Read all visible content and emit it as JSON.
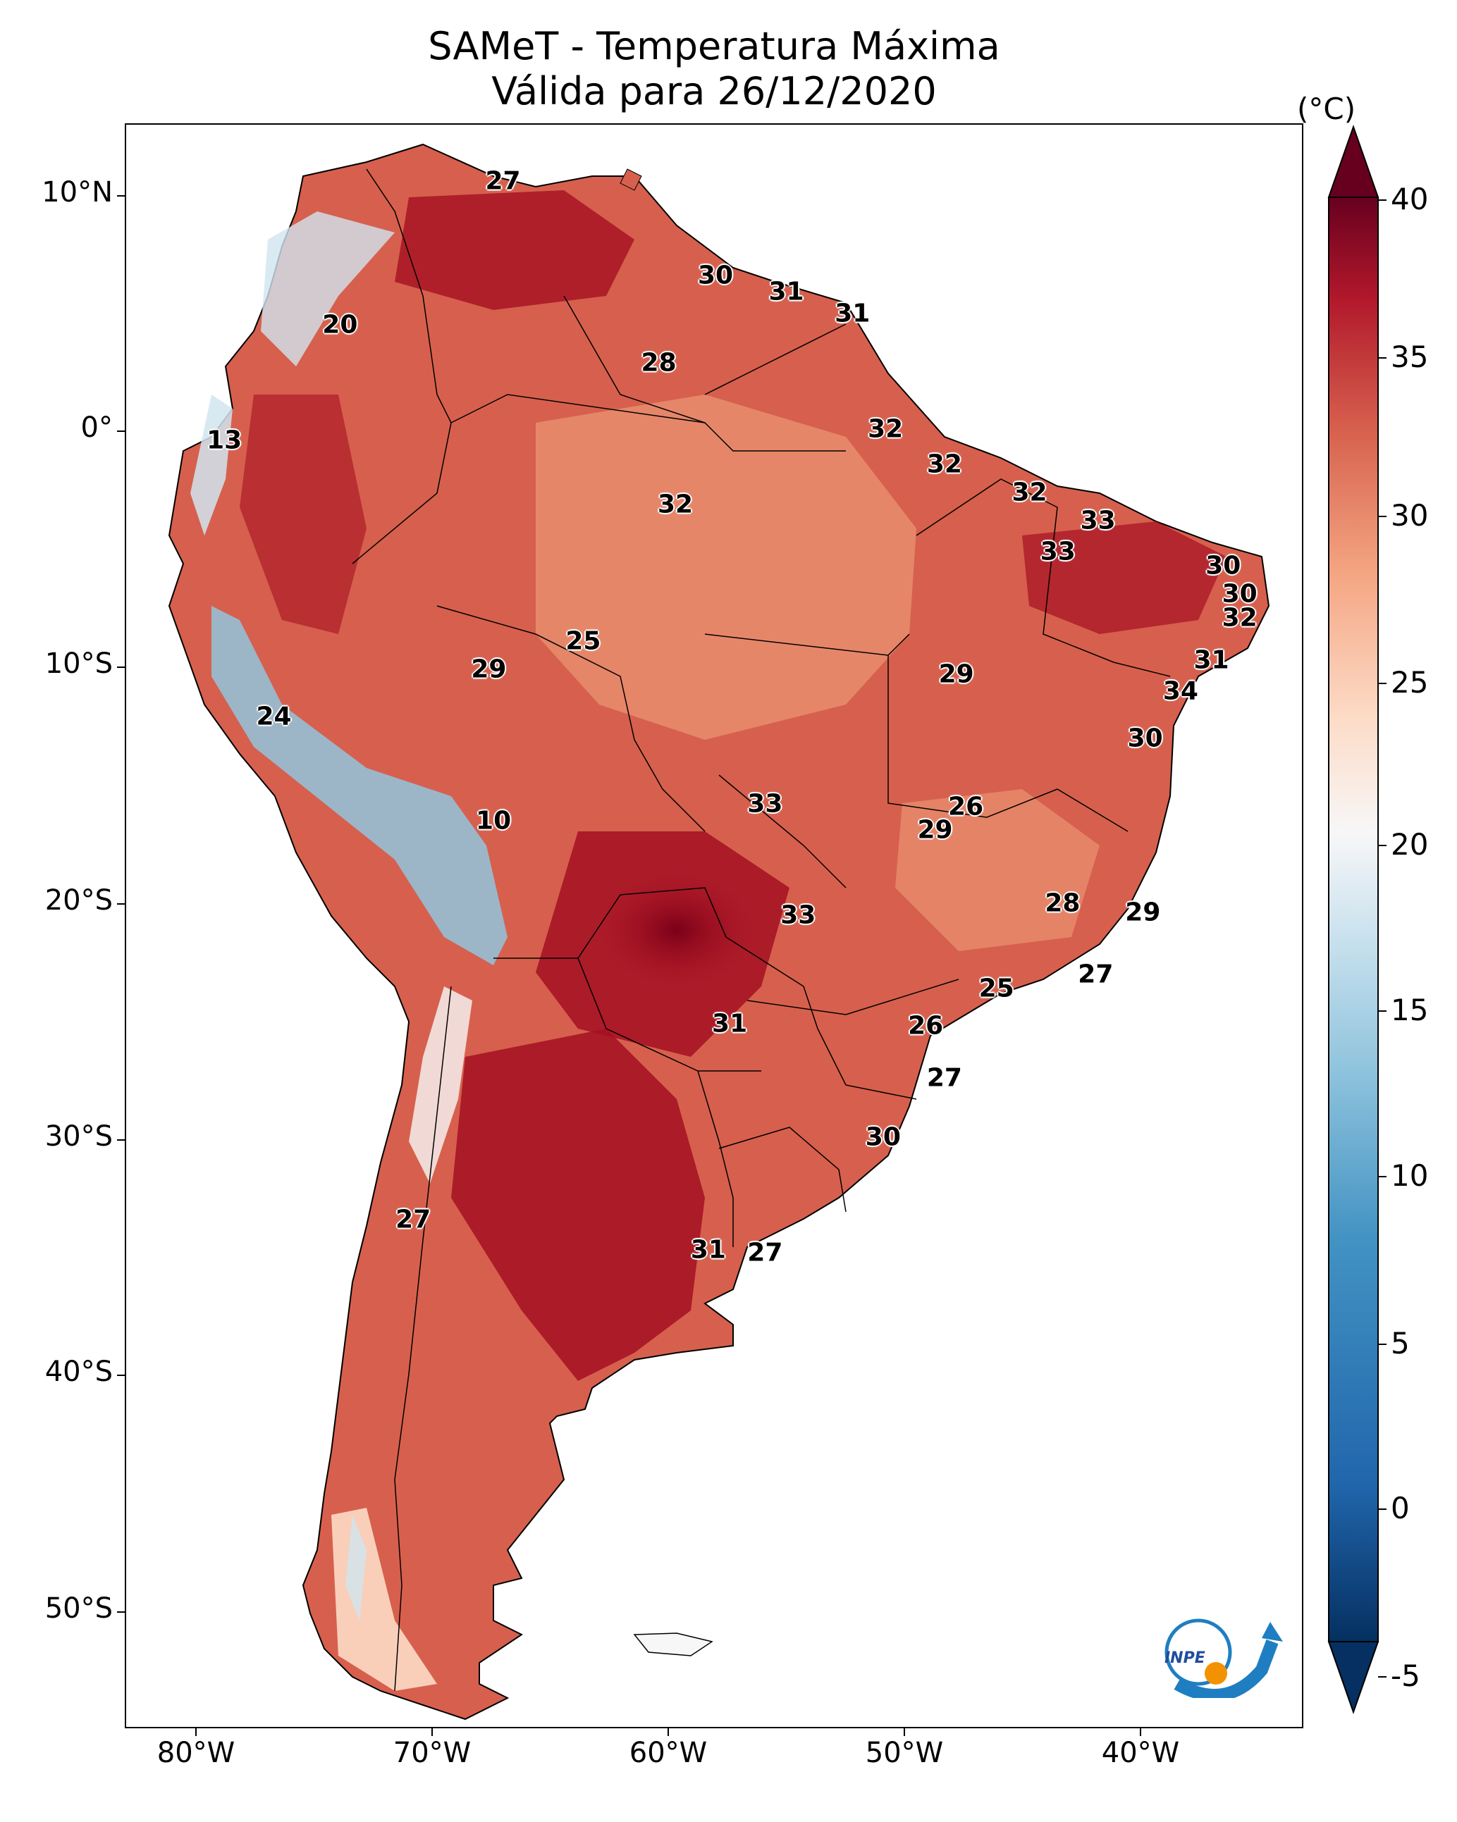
{
  "title": "SAMeT - Temperatura Máxima",
  "subtitle": "Válida para 26/12/2020",
  "colorbar": {
    "unit": "(°C)",
    "ticks": [
      "40",
      "35",
      "30",
      "25",
      "20",
      "15",
      "10",
      "5",
      "0",
      "-5"
    ],
    "range": [
      -5,
      40
    ]
  },
  "axes": {
    "lat_ticks": [
      "10°N",
      "0°",
      "10°S",
      "20°S",
      "30°S",
      "40°S",
      "50°S"
    ],
    "lon_ticks": [
      "80°W",
      "70°W",
      "60°W",
      "50°W",
      "40°W"
    ]
  },
  "map_labels": [
    {
      "value": "27",
      "lon": -67,
      "lat": 10.6
    },
    {
      "value": "30",
      "lon": -58,
      "lat": 6.6
    },
    {
      "value": "31",
      "lon": -55,
      "lat": 5.9
    },
    {
      "value": "31",
      "lon": -52.2,
      "lat": 5.0
    },
    {
      "value": "20",
      "lon": -73.9,
      "lat": 4.5
    },
    {
      "value": "28",
      "lon": -60.4,
      "lat": 2.9
    },
    {
      "value": "32",
      "lon": -50.8,
      "lat": 0.1
    },
    {
      "value": "13",
      "lon": -78.8,
      "lat": -0.4
    },
    {
      "value": "32",
      "lon": -48.3,
      "lat": -1.4
    },
    {
      "value": "32",
      "lon": -44.7,
      "lat": -2.6
    },
    {
      "value": "32",
      "lon": -59.7,
      "lat": -3.1
    },
    {
      "value": "33",
      "lon": -41.8,
      "lat": -3.8
    },
    {
      "value": "33",
      "lon": -43.5,
      "lat": -5.1
    },
    {
      "value": "30",
      "lon": -36.5,
      "lat": -5.7
    },
    {
      "value": "30",
      "lon": -35.8,
      "lat": -6.9
    },
    {
      "value": "32",
      "lon": -35.8,
      "lat": -7.9
    },
    {
      "value": "25",
      "lon": -63.6,
      "lat": -8.9
    },
    {
      "value": "29",
      "lon": -67.6,
      "lat": -10.1
    },
    {
      "value": "29",
      "lon": -47.8,
      "lat": -10.3
    },
    {
      "value": "31",
      "lon": -37.0,
      "lat": -9.7
    },
    {
      "value": "34",
      "lon": -38.3,
      "lat": -11.0
    },
    {
      "value": "24",
      "lon": -76.7,
      "lat": -12.1
    },
    {
      "value": "30",
      "lon": -39.8,
      "lat": -13.0
    },
    {
      "value": "33",
      "lon": -55.9,
      "lat": -15.8
    },
    {
      "value": "26",
      "lon": -47.4,
      "lat": -15.9
    },
    {
      "value": "29",
      "lon": -48.7,
      "lat": -16.9
    },
    {
      "value": "10",
      "lon": -67.4,
      "lat": -16.5
    },
    {
      "value": "28",
      "lon": -43.3,
      "lat": -20.0
    },
    {
      "value": "29",
      "lon": -39.9,
      "lat": -20.4
    },
    {
      "value": "33",
      "lon": -54.5,
      "lat": -20.5
    },
    {
      "value": "27",
      "lon": -41.9,
      "lat": -23.0
    },
    {
      "value": "25",
      "lon": -46.1,
      "lat": -23.6
    },
    {
      "value": "31",
      "lon": -57.4,
      "lat": -25.1
    },
    {
      "value": "26",
      "lon": -49.1,
      "lat": -25.2
    },
    {
      "value": "27",
      "lon": -48.3,
      "lat": -27.4
    },
    {
      "value": "30",
      "lon": -50.9,
      "lat": -29.9
    },
    {
      "value": "27",
      "lon": -70.8,
      "lat": -33.4
    },
    {
      "value": "31",
      "lon": -58.3,
      "lat": -34.7
    },
    {
      "value": "27",
      "lon": -55.9,
      "lat": -34.8
    }
  ],
  "logo": {
    "text": "INPE"
  },
  "colors": {
    "hot": "#a50f22",
    "warm": "#d6604d",
    "mild": "#f4a582",
    "neutral": "#f7f7f7",
    "cool": "#92c5de",
    "cold": "#2166ac",
    "coldest": "#053061"
  }
}
